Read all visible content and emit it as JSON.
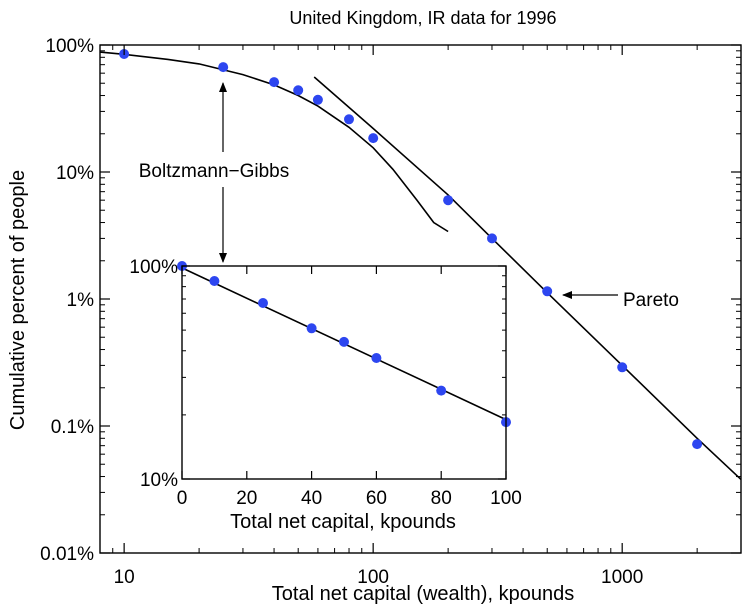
{
  "chart_data": [
    {
      "type": "scatter",
      "title": "United Kingdom, IR data for 1996",
      "xlabel": "Total net capital (wealth), kpounds",
      "ylabel": "Cumulative percent of people",
      "xscale": "log",
      "yscale": "log",
      "xlim": [
        8,
        3000
      ],
      "ylim": [
        0.01,
        100
      ],
      "xticks": [
        10,
        100,
        1000
      ],
      "xtick_labels": [
        "10",
        "100",
        "1000"
      ],
      "yticks": [
        0.01,
        0.1,
        1,
        10,
        100
      ],
      "ytick_labels": [
        "0.01%",
        "0.1%",
        "1%",
        "10%",
        "100%"
      ],
      "grid": false,
      "series": [
        {
          "points": [
            [
              10,
              85
            ],
            [
              25,
              67
            ],
            [
              40,
              51
            ],
            [
              50,
              44
            ],
            [
              60,
              37
            ],
            [
              80,
              26
            ],
            [
              100,
              18.5
            ],
            [
              200,
              6
            ],
            [
              300,
              3
            ],
            [
              500,
              1.15
            ],
            [
              1000,
              0.29
            ],
            [
              2000,
              0.072
            ]
          ],
          "color": "#2d46f0"
        }
      ],
      "fits": [
        {
          "points": [
            [
              8,
              88
            ],
            [
              10,
              84.5
            ],
            [
              15,
              77
            ],
            [
              20,
              71
            ],
            [
              30,
              58.5
            ],
            [
              40,
              48.5
            ],
            [
              50,
              40
            ],
            [
              60,
              33
            ],
            [
              80,
              22.5
            ],
            [
              100,
              15.5
            ],
            [
              120,
              10.5
            ],
            [
              150,
              6
            ],
            [
              175,
              4
            ],
            [
              200,
              3.4
            ]
          ]
        },
        {
          "points": [
            [
              58,
              56
            ],
            [
              100,
              22
            ],
            [
              200,
              6.6
            ],
            [
              300,
              3
            ],
            [
              500,
              1.12
            ],
            [
              1000,
              0.3
            ],
            [
              2000,
              0.08
            ],
            [
              3000,
              0.038
            ]
          ]
        }
      ],
      "annotations": [
        {
          "text": "Boltzmann−Gibbs"
        },
        {
          "text": "Pareto"
        }
      ]
    },
    {
      "type": "scatter",
      "xlabel": "Total net capital, kpounds",
      "yscale": "log",
      "xlim": [
        0,
        100
      ],
      "ylim": [
        10,
        100
      ],
      "xticks": [
        0,
        20,
        40,
        60,
        80,
        100
      ],
      "xtick_labels": [
        "0",
        "20",
        "40",
        "60",
        "80",
        "100"
      ],
      "yticks": [
        10,
        100
      ],
      "ytick_labels": [
        "10%",
        "100%"
      ],
      "grid": false,
      "series": [
        {
          "points": [
            [
              0,
              100
            ],
            [
              10,
              85
            ],
            [
              25,
              67
            ],
            [
              40,
              51
            ],
            [
              50,
              44
            ],
            [
              60,
              37
            ],
            [
              80,
              26
            ],
            [
              100,
              18.5
            ]
          ],
          "color": "#2d46f0"
        }
      ],
      "fits": [
        {
          "points": [
            [
              0,
              98
            ],
            [
              100,
              19
            ]
          ]
        }
      ]
    }
  ]
}
